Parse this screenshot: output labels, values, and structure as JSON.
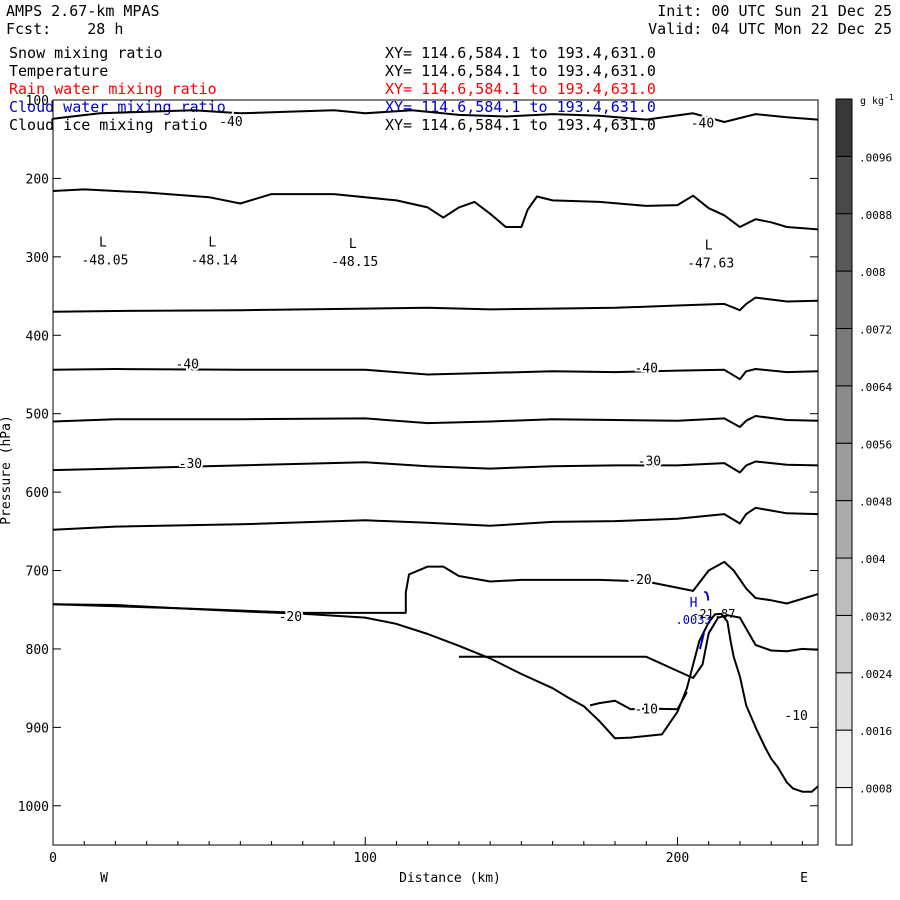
{
  "header": {
    "model": "AMPS 2.67-km MPAS",
    "forecast": "Fcst:    28 h",
    "init": "Init: 00 UTC Sun 21 Dec 25",
    "valid": "Valid: 04 UTC Mon 22 Dec 25"
  },
  "legend": [
    {
      "name": "Snow mixing ratio",
      "xy": "XY= 114.6,584.1 to 193.4,631.0",
      "color": "#000000"
    },
    {
      "name": "Temperature",
      "xy": "XY= 114.6,584.1 to 193.4,631.0",
      "color": "#000000"
    },
    {
      "name": "Rain water mixing ratio",
      "xy": "XY= 114.6,584.1 to 193.4,631.0",
      "color": "#ff0000"
    },
    {
      "name": "Cloud water mixing ratio",
      "xy": "XY= 114.6,584.1 to 193.4,631.0",
      "color": "#0000cc"
    },
    {
      "name": "Cloud ice mixing ratio",
      "xy": "XY= 114.6,584.1 to 193.4,631.0",
      "color": "#000000"
    }
  ],
  "chart_data": {
    "type": "cross-section contour",
    "xlabel": "Distance (km)",
    "ylabel": "Pressure (hPa)",
    "xlim": [
      0,
      245
    ],
    "ylim": [
      1050,
      100
    ],
    "x_ticks": [
      0,
      100,
      200
    ],
    "x_tick_labels": [
      "0",
      "100",
      "200"
    ],
    "y_ticks": [
      100,
      200,
      300,
      400,
      500,
      600,
      700,
      800,
      900,
      1000
    ],
    "y_tick_labels": [
      "100",
      "200",
      "300",
      "400",
      "500",
      "600",
      "700",
      "800",
      "900",
      "1000"
    ],
    "orientation_left": "W",
    "orientation_right": "E",
    "colorbar": {
      "unit_base": "g kg",
      "unit_exp": "-1",
      "labels": [
        ".0096",
        ".0088",
        ".008",
        ".0072",
        ".0064",
        ".0056",
        ".0048",
        ".004",
        ".0032",
        ".0024",
        ".0016",
        ".0008"
      ]
    },
    "temperature_labels": [
      {
        "text": "-40",
        "x": 57,
        "p": 127
      },
      {
        "text": "-40",
        "x": 43,
        "p": 436
      },
      {
        "text": "-40",
        "x": 190,
        "p": 441
      },
      {
        "text": "-30",
        "x": 44,
        "p": 563
      },
      {
        "text": "-30",
        "x": 191,
        "p": 560
      },
      {
        "text": "-20",
        "x": 76,
        "p": 758
      },
      {
        "text": "-20",
        "x": 188,
        "p": 711
      },
      {
        "text": "-10",
        "x": 190,
        "p": 876
      },
      {
        "text": "-10",
        "x": 238,
        "p": 884
      },
      {
        "text": "-40",
        "x": 208,
        "p": 129
      }
    ],
    "lows": [
      {
        "mark": "L",
        "value": "-48.05",
        "x": 16,
        "p": 293
      },
      {
        "mark": "L",
        "value": "-48.14",
        "x": 51,
        "p": 293
      },
      {
        "mark": "L",
        "value": "-48.15",
        "x": 96,
        "p": 295
      },
      {
        "mark": "L",
        "value": "-47.63",
        "x": 210,
        "p": 297
      }
    ],
    "highs": [
      {
        "mark": "H",
        "value": ".0033",
        "x": 209,
        "p": 772,
        "color": "#0000cc"
      },
      {
        "mark": "",
        "value": "-21.87",
        "x": 211,
        "p": 772,
        "color": "#000000"
      }
    ],
    "terrain": {
      "x": [
        0,
        20,
        40,
        60,
        80,
        100,
        110,
        120,
        130,
        140,
        150,
        160,
        165,
        170,
        175,
        180,
        185,
        190,
        195,
        200,
        203,
        205,
        207,
        210,
        212,
        214,
        216,
        217,
        218,
        220,
        222,
        225,
        228,
        230,
        232,
        235,
        237,
        240,
        243,
        245
      ],
      "p": [
        743,
        744,
        748,
        752,
        755,
        760,
        768,
        781,
        796,
        812,
        832,
        850,
        862,
        873,
        892,
        914,
        913,
        911,
        909,
        880,
        850,
        820,
        790,
        766,
        756,
        755,
        765,
        790,
        810,
        835,
        872,
        900,
        925,
        940,
        950,
        970,
        978,
        982,
        982,
        975
      ]
    },
    "isotherms": [
      {
        "name": "cloud ice top",
        "x": [
          0,
          15,
          30,
          45,
          60,
          75,
          90,
          100,
          115,
          130,
          145,
          160,
          175,
          190,
          205,
          215,
          225,
          235,
          245
        ],
        "p": [
          124,
          117,
          115,
          113,
          117,
          115,
          113,
          117,
          113,
          119,
          121,
          118,
          120,
          125,
          117,
          128,
          118,
          122,
          125
        ]
      },
      {
        "name": "tropopause",
        "x": [
          0,
          10,
          30,
          50,
          60,
          70,
          90,
          110,
          120,
          125,
          130,
          135,
          140,
          145,
          150,
          152,
          155,
          160,
          175,
          190,
          200,
          205,
          210,
          215,
          220,
          225,
          230,
          235,
          245
        ],
        "p": [
          216,
          214,
          218,
          224,
          232,
          220,
          220,
          228,
          237,
          250,
          237,
          230,
          245,
          262,
          262,
          240,
          223,
          228,
          230,
          235,
          234,
          222,
          238,
          247,
          262,
          252,
          256,
          262,
          265
        ]
      },
      {
        "name": "-45",
        "x": [
          0,
          20,
          60,
          100,
          120,
          140,
          160,
          180,
          200,
          215,
          220,
          222,
          225,
          235,
          245
        ],
        "p": [
          370,
          369,
          368,
          366,
          365,
          367,
          366,
          365,
          362,
          360,
          368,
          360,
          352,
          357,
          356
        ]
      },
      {
        "name": "-40",
        "x": [
          0,
          20,
          60,
          100,
          120,
          140,
          160,
          180,
          200,
          215,
          220,
          222,
          225,
          235,
          245
        ],
        "p": [
          444,
          443,
          444,
          444,
          450,
          448,
          446,
          447,
          445,
          444,
          456,
          446,
          443,
          447,
          446
        ]
      },
      {
        "name": "-35",
        "x": [
          0,
          20,
          60,
          100,
          120,
          140,
          160,
          180,
          200,
          215,
          220,
          222,
          225,
          235,
          245
        ],
        "p": [
          510,
          507,
          507,
          506,
          512,
          510,
          507,
          508,
          509,
          506,
          517,
          509,
          503,
          508,
          509
        ]
      },
      {
        "name": "-30",
        "x": [
          0,
          20,
          60,
          100,
          120,
          140,
          160,
          180,
          200,
          215,
          220,
          222,
          225,
          235,
          245
        ],
        "p": [
          572,
          570,
          566,
          562,
          567,
          570,
          567,
          566,
          566,
          563,
          575,
          566,
          561,
          565,
          566
        ]
      },
      {
        "name": "-25",
        "x": [
          0,
          20,
          60,
          100,
          120,
          140,
          160,
          180,
          200,
          215,
          220,
          222,
          225,
          235,
          245
        ],
        "p": [
          648,
          644,
          641,
          636,
          639,
          643,
          638,
          637,
          634,
          628,
          640,
          628,
          620,
          627,
          628
        ]
      },
      {
        "name": "-20",
        "x": [
          0,
          40,
          80,
          113,
          113,
          114,
          120,
          125,
          130,
          140,
          150,
          160,
          175,
          190,
          205,
          210,
          215,
          218,
          222,
          225,
          230,
          235,
          245
        ],
        "p": [
          743,
          748,
          754,
          754,
          728,
          705,
          695,
          695,
          707,
          714,
          712,
          712,
          712,
          714,
          726,
          700,
          689,
          700,
          723,
          735,
          738,
          742,
          730
        ]
      },
      {
        "name": "-15",
        "x": [
          130,
          150,
          170,
          190,
          205,
          208,
          210,
          213,
          216,
          220,
          225,
          230,
          235,
          240,
          245
        ],
        "p": [
          810,
          810,
          810,
          810,
          837,
          820,
          780,
          760,
          757,
          760,
          795,
          802,
          803,
          800,
          801
        ]
      },
      {
        "name": "-10",
        "x": [
          172,
          175,
          180,
          185,
          190,
          200,
          203
        ],
        "p": [
          872,
          869,
          866,
          877,
          876,
          877,
          855
        ]
      }
    ]
  }
}
